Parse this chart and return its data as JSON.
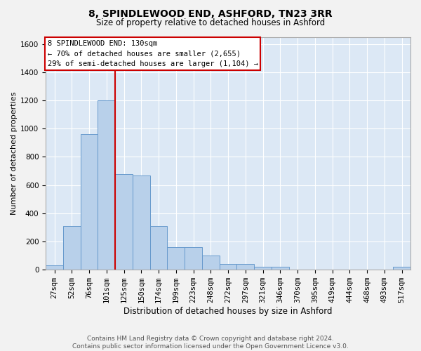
{
  "title_line1": "8, SPINDLEWOOD END, ASHFORD, TN23 3RR",
  "title_line2": "Size of property relative to detached houses in Ashford",
  "xlabel": "Distribution of detached houses by size in Ashford",
  "ylabel": "Number of detached properties",
  "footnote": "Contains HM Land Registry data © Crown copyright and database right 2024.\nContains public sector information licensed under the Open Government Licence v3.0.",
  "bar_labels": [
    "27sqm",
    "52sqm",
    "76sqm",
    "101sqm",
    "125sqm",
    "150sqm",
    "174sqm",
    "199sqm",
    "223sqm",
    "248sqm",
    "272sqm",
    "297sqm",
    "321sqm",
    "346sqm",
    "370sqm",
    "395sqm",
    "419sqm",
    "444sqm",
    "468sqm",
    "493sqm",
    "517sqm"
  ],
  "bar_heights": [
    30,
    310,
    960,
    1200,
    680,
    670,
    310,
    160,
    160,
    100,
    40,
    40,
    20,
    20,
    0,
    0,
    0,
    0,
    0,
    0,
    20
  ],
  "bar_color": "#b8d0ea",
  "bar_edge_color": "#6699cc",
  "background_color": "#dce8f5",
  "grid_color": "#ffffff",
  "vline_color": "#cc0000",
  "vline_index": 4,
  "annotation_text": "8 SPINDLEWOOD END: 130sqm\n← 70% of detached houses are smaller (2,655)\n29% of semi-detached houses are larger (1,104) →",
  "annotation_box_facecolor": "#ffffff",
  "annotation_box_edgecolor": "#cc0000",
  "ylim": [
    0,
    1650
  ],
  "yticks": [
    0,
    200,
    400,
    600,
    800,
    1000,
    1200,
    1400,
    1600
  ],
  "fig_bg": "#f2f2f2",
  "title_fontsize": 10,
  "subtitle_fontsize": 8.5,
  "ylabel_fontsize": 8,
  "xlabel_fontsize": 8.5,
  "tick_fontsize": 7.5,
  "footnote_fontsize": 6.5
}
